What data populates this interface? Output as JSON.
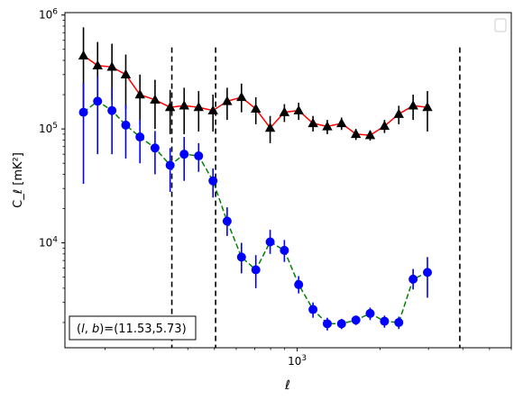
{
  "chart_data": {
    "type": "scatter",
    "title": "",
    "xlabel": "ℓ",
    "ylabel": "C_ℓ  [mK²]",
    "xscale": "log",
    "yscale": "log",
    "xlim": [
      143,
      6000
    ],
    "ylim": [
      1200,
      1050000
    ],
    "grid": false,
    "legend": {
      "placement": "top-right",
      "entries": []
    },
    "x_ticks": [
      {
        "value": 1000,
        "base": "10",
        "exp": "3"
      }
    ],
    "y_ticks": [
      {
        "value": 10000,
        "base": "10",
        "exp": "4"
      },
      {
        "value": 100000,
        "base": "10",
        "exp": "5"
      },
      {
        "value": 1000000,
        "base": "10",
        "exp": "6"
      }
    ],
    "vlines": [
      350,
      505,
      3900
    ],
    "annotation": "(l, b)=(11.53,5.73)",
    "series": [
      {
        "marker": "triangle",
        "marker_color": "#000000",
        "line_color": "#ff0000",
        "line_style": "solid",
        "points": [
          {
            "x": 167,
            "y": 440000,
            "lo": 150000,
            "hi": 780000
          },
          {
            "x": 188,
            "y": 360000,
            "lo": 170000,
            "hi": 580000
          },
          {
            "x": 212,
            "y": 350000,
            "lo": 180000,
            "hi": 560000
          },
          {
            "x": 238,
            "y": 300000,
            "lo": 150000,
            "hi": 450000
          },
          {
            "x": 268,
            "y": 200000,
            "lo": 110000,
            "hi": 300000
          },
          {
            "x": 304,
            "y": 180000,
            "lo": 100000,
            "hi": 270000
          },
          {
            "x": 345,
            "y": 155000,
            "lo": 90000,
            "hi": 220000
          },
          {
            "x": 388,
            "y": 160000,
            "lo": 90000,
            "hi": 230000
          },
          {
            "x": 438,
            "y": 155000,
            "lo": 95000,
            "hi": 215000
          },
          {
            "x": 494,
            "y": 145000,
            "lo": 95000,
            "hi": 200000
          },
          {
            "x": 556,
            "y": 175000,
            "lo": 120000,
            "hi": 230000
          },
          {
            "x": 627,
            "y": 190000,
            "lo": 140000,
            "hi": 250000
          },
          {
            "x": 707,
            "y": 150000,
            "lo": 110000,
            "hi": 190000
          },
          {
            "x": 797,
            "y": 102000,
            "lo": 75000,
            "hi": 130000
          },
          {
            "x": 898,
            "y": 140000,
            "lo": 115000,
            "hi": 165000
          },
          {
            "x": 1012,
            "y": 145000,
            "lo": 120000,
            "hi": 170000
          },
          {
            "x": 1141,
            "y": 112000,
            "lo": 95000,
            "hi": 130000
          },
          {
            "x": 1286,
            "y": 105000,
            "lo": 90000,
            "hi": 120000
          },
          {
            "x": 1449,
            "y": 112000,
            "lo": 98000,
            "hi": 126000
          },
          {
            "x": 1634,
            "y": 90000,
            "lo": 80000,
            "hi": 100000
          },
          {
            "x": 1841,
            "y": 88000,
            "lo": 79000,
            "hi": 97000
          },
          {
            "x": 2076,
            "y": 106000,
            "lo": 92000,
            "hi": 120000
          },
          {
            "x": 2340,
            "y": 135000,
            "lo": 110000,
            "hi": 160000
          },
          {
            "x": 2638,
            "y": 160000,
            "lo": 120000,
            "hi": 200000
          },
          {
            "x": 2974,
            "y": 155000,
            "lo": 95000,
            "hi": 215000
          }
        ]
      },
      {
        "marker": "circle",
        "marker_color": "#0000ff",
        "line_color": "#008000",
        "line_style": "dashed",
        "points": [
          {
            "x": 167,
            "y": 140000,
            "lo": 33000,
            "hi": 250000
          },
          {
            "x": 188,
            "y": 175000,
            "lo": 60000,
            "hi": 290000
          },
          {
            "x": 212,
            "y": 145000,
            "lo": 60000,
            "hi": 230000
          },
          {
            "x": 238,
            "y": 108000,
            "lo": 55000,
            "hi": 162000
          },
          {
            "x": 268,
            "y": 85000,
            "lo": 50000,
            "hi": 120000
          },
          {
            "x": 304,
            "y": 68000,
            "lo": 40000,
            "hi": 96000
          },
          {
            "x": 345,
            "y": 48000,
            "lo": 28000,
            "hi": 68000
          },
          {
            "x": 388,
            "y": 60000,
            "lo": 35000,
            "hi": 85000
          },
          {
            "x": 438,
            "y": 58000,
            "lo": 42000,
            "hi": 75000
          },
          {
            "x": 494,
            "y": 35000,
            "lo": 25000,
            "hi": 45000
          },
          {
            "x": 556,
            "y": 15500,
            "lo": 11500,
            "hi": 20500
          },
          {
            "x": 627,
            "y": 7500,
            "lo": 5400,
            "hi": 10000
          },
          {
            "x": 707,
            "y": 5800,
            "lo": 4000,
            "hi": 7800
          },
          {
            "x": 797,
            "y": 10200,
            "lo": 8000,
            "hi": 13000
          },
          {
            "x": 898,
            "y": 8600,
            "lo": 6800,
            "hi": 10600
          },
          {
            "x": 1012,
            "y": 4300,
            "lo": 3600,
            "hi": 5100
          },
          {
            "x": 1141,
            "y": 2600,
            "lo": 2200,
            "hi": 3000
          },
          {
            "x": 1286,
            "y": 1950,
            "lo": 1700,
            "hi": 2200
          },
          {
            "x": 1449,
            "y": 1950,
            "lo": 1750,
            "hi": 2150
          },
          {
            "x": 1634,
            "y": 2100,
            "lo": 1900,
            "hi": 2300
          },
          {
            "x": 1841,
            "y": 2400,
            "lo": 2100,
            "hi": 2700
          },
          {
            "x": 2076,
            "y": 2050,
            "lo": 1800,
            "hi": 2300
          },
          {
            "x": 2340,
            "y": 2000,
            "lo": 1750,
            "hi": 2250
          },
          {
            "x": 2638,
            "y": 4800,
            "lo": 3900,
            "hi": 5900
          },
          {
            "x": 2974,
            "y": 5500,
            "lo": 3300,
            "hi": 7500
          }
        ]
      }
    ]
  }
}
